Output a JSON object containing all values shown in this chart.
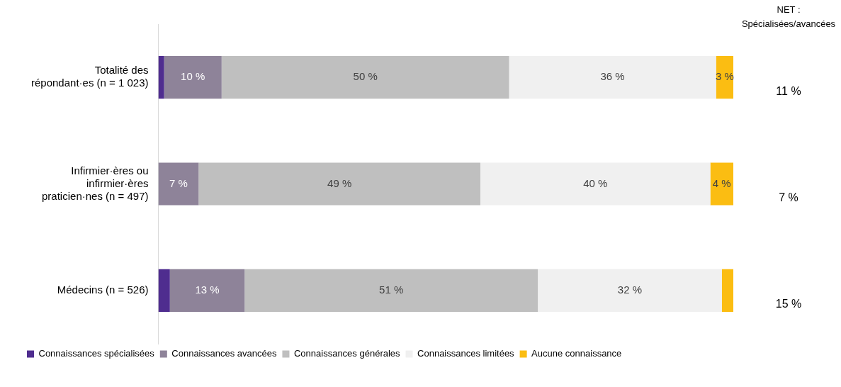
{
  "chart_data": {
    "type": "bar",
    "orientation": "horizontal",
    "stacked": true,
    "categories": [
      "Totalité des répondant·es (n = 1 023)",
      "Infirmier·ères ou infirmier·ères praticien·nes (n = 497)",
      "Médecins (n = 526)"
    ],
    "series": [
      {
        "name": "Connaissances spécialisées",
        "color": "#4f2d8f",
        "values": [
          1,
          0,
          2
        ],
        "value_labels": [
          null,
          null,
          null
        ]
      },
      {
        "name": "Connaissances avancées",
        "color": "#8e8399",
        "values": [
          10,
          7,
          13
        ],
        "value_labels": [
          "10 %",
          "7 %",
          "13 %"
        ]
      },
      {
        "name": "Connaissances générales",
        "color": "#bfbfbf",
        "values": [
          50,
          49,
          51
        ],
        "value_labels": [
          "50 %",
          "49 %",
          "51 %"
        ]
      },
      {
        "name": "Connaissances limitées",
        "color": "#f0f0f0",
        "values": [
          36,
          40,
          32
        ],
        "value_labels": [
          "36 %",
          "40 %",
          "32 %"
        ]
      },
      {
        "name": "Aucune connaissance",
        "color": "#fbbd12",
        "values": [
          3,
          4,
          2
        ],
        "value_labels": [
          "3 %",
          "4 %",
          null
        ]
      }
    ],
    "xlim": [
      0,
      100
    ],
    "tick_labels": "y",
    "legend": "bottom left",
    "annotations": [
      "NET :\nSpécialisées/avancées",
      "11 %",
      "7 %",
      "15 %"
    ]
  }
}
